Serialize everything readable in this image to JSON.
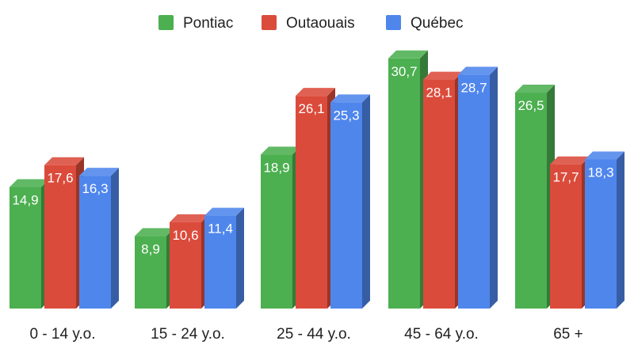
{
  "chart_data": {
    "type": "bar",
    "style": "3d-grouped",
    "categories": [
      "0 - 14 y.o.",
      "15 - 24 y.o.",
      "25 - 44 y.o.",
      "45 - 64 y.o.",
      "65 +"
    ],
    "series": [
      {
        "name": "Pontiac",
        "color": "#4caf50",
        "values": [
          14.9,
          8.9,
          18.9,
          30.7,
          26.5
        ],
        "labels": [
          "14,9",
          "8,9",
          "18,9",
          "30,7",
          "26,5"
        ]
      },
      {
        "name": "Outaouais",
        "color": "#db4b3b",
        "values": [
          17.6,
          10.6,
          26.1,
          28.1,
          17.7
        ],
        "labels": [
          "17,6",
          "10,6",
          "26,1",
          "28,1",
          "17,7"
        ]
      },
      {
        "name": "Québec",
        "color": "#4f86ec",
        "values": [
          16.3,
          11.4,
          25.3,
          28.7,
          18.3
        ],
        "labels": [
          "16,3",
          "11,4",
          "25,3",
          "28,7",
          "18,3"
        ]
      }
    ],
    "legend_position": "top-center",
    "grid": false,
    "ylim": [
      0,
      33
    ]
  }
}
